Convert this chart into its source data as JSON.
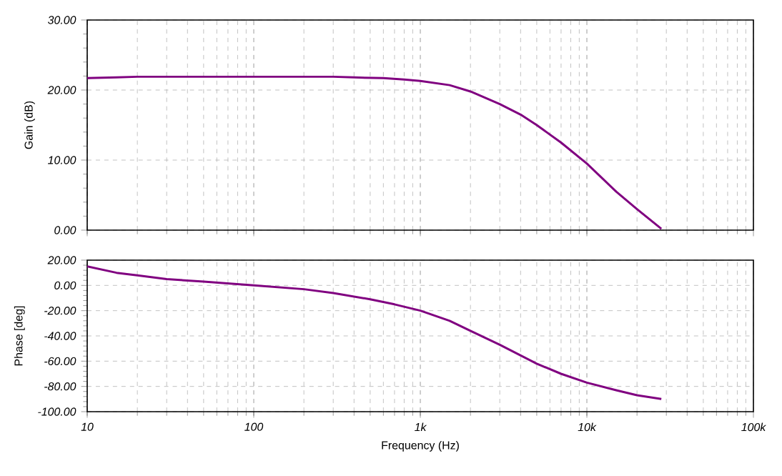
{
  "chart_data": [
    {
      "type": "line",
      "ylabel": "Gain (dB)",
      "log": "x",
      "grid": true,
      "tick_labels": "y",
      "xlim": [
        10,
        100000
      ],
      "xticks": [
        {
          "value": 10,
          "label": null
        },
        {
          "value": 100,
          "label": null
        },
        {
          "value": 1000,
          "label": null
        },
        {
          "value": 10000,
          "label": null
        },
        {
          "value": 100000,
          "label": null
        }
      ],
      "ylim": [
        0,
        30
      ],
      "yticks": [
        {
          "value": 0,
          "label": "0.00"
        },
        {
          "value": 10,
          "label": "10.00"
        },
        {
          "value": 20,
          "label": "20.00"
        },
        {
          "value": 30,
          "label": "30.00"
        }
      ],
      "series": [
        {
          "color": "#800080",
          "x": [
            10,
            15,
            20,
            100,
            300,
            400,
            600,
            800,
            1000,
            1500,
            2000,
            3000,
            4000,
            5000,
            7000,
            10000,
            15000,
            20000,
            28000
          ],
          "values": [
            21.7,
            21.8,
            21.9,
            21.9,
            21.9,
            21.8,
            21.7,
            21.5,
            21.3,
            20.7,
            19.8,
            18.0,
            16.5,
            15.0,
            12.5,
            9.5,
            5.5,
            3.0,
            0.2
          ]
        }
      ]
    },
    {
      "type": "line",
      "ylabel": "Phase [deg]",
      "xlabel": "Frequency (Hz)",
      "log": "x",
      "grid": true,
      "xlim": [
        10,
        100000
      ],
      "xticks": [
        {
          "value": 10,
          "label": "10"
        },
        {
          "value": 100,
          "label": "100"
        },
        {
          "value": 1000,
          "label": "1k"
        },
        {
          "value": 10000,
          "label": "10k"
        },
        {
          "value": 100000,
          "label": "100k"
        }
      ],
      "ylim": [
        -100,
        20
      ],
      "yticks": [
        {
          "value": -100,
          "label": "-100.00"
        },
        {
          "value": -80,
          "label": "-80.00"
        },
        {
          "value": -60,
          "label": "-60.00"
        },
        {
          "value": -40,
          "label": "-40.00"
        },
        {
          "value": -20,
          "label": "-20.00"
        },
        {
          "value": 0,
          "label": "0.00"
        },
        {
          "value": 20,
          "label": "20.00"
        }
      ],
      "series": [
        {
          "color": "#800080",
          "x": [
            10,
            15,
            20,
            30,
            50,
            100,
            200,
            300,
            500,
            700,
            1000,
            1500,
            2000,
            3000,
            5000,
            7000,
            10000,
            15000,
            20000,
            28000
          ],
          "values": [
            15,
            10,
            8,
            5,
            3,
            0,
            -3,
            -6,
            -11,
            -15,
            -20,
            -28,
            -36,
            -47,
            -62,
            -70,
            -77,
            -83,
            -87,
            -90
          ]
        }
      ]
    }
  ]
}
